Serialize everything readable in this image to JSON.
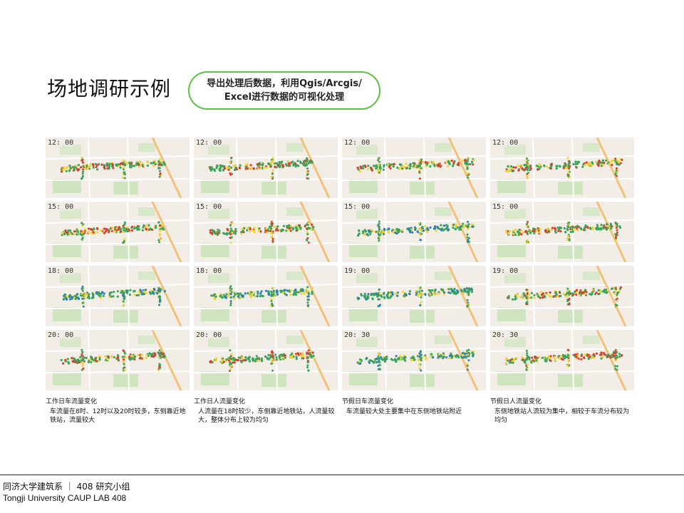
{
  "slide": {
    "title": "场地调研示例",
    "callout_line1": "导出处理后数据，利用Qgis/Arcgis/",
    "callout_line2": "Excel进行数据的可视化处理"
  },
  "maps": [
    [
      "12: 00",
      "12: 00",
      "12: 00",
      "12: 00"
    ],
    [
      "15: 00",
      "15: 00",
      "15: 00",
      "15: 00"
    ],
    [
      "18: 00",
      "18: 00",
      "19: 00",
      "19: 00"
    ],
    [
      "20: 00",
      "20: 00",
      "20: 30",
      "20: 30"
    ]
  ],
  "captions": [
    {
      "title": "工作日车流量变化",
      "body": "车流量在8时、12时以及20时较多，东侧靠近地铁站，流量较大"
    },
    {
      "title": "工作日人流量变化",
      "body": "人流量在18时较少，东侧靠近地铁站，人流量较大，整体分布上较为均匀"
    },
    {
      "title": "节假日车流量变化",
      "body": "车流量较大处主要集中在东侧地铁站附近"
    },
    {
      "title": "节假日人流量变化",
      "body": "东侧地铁站人流较为集中，相较于车流分布较为均匀"
    }
  ],
  "footer": {
    "line1": "同济大学建筑系 ｜ 408 研究小组",
    "line2": "Tongji  University  CAUP   LAB 408"
  },
  "colors": {
    "accent": "#5cc241",
    "map_bg": "#f2ede6",
    "road": "#ffffff",
    "park": "#cfe5bf",
    "rail": "#f0c27a",
    "heat_high": "#d9402b",
    "heat_mid": "#f0d23a",
    "heat_low": "#3aa35c",
    "heat_cool": "#2f7fae"
  }
}
